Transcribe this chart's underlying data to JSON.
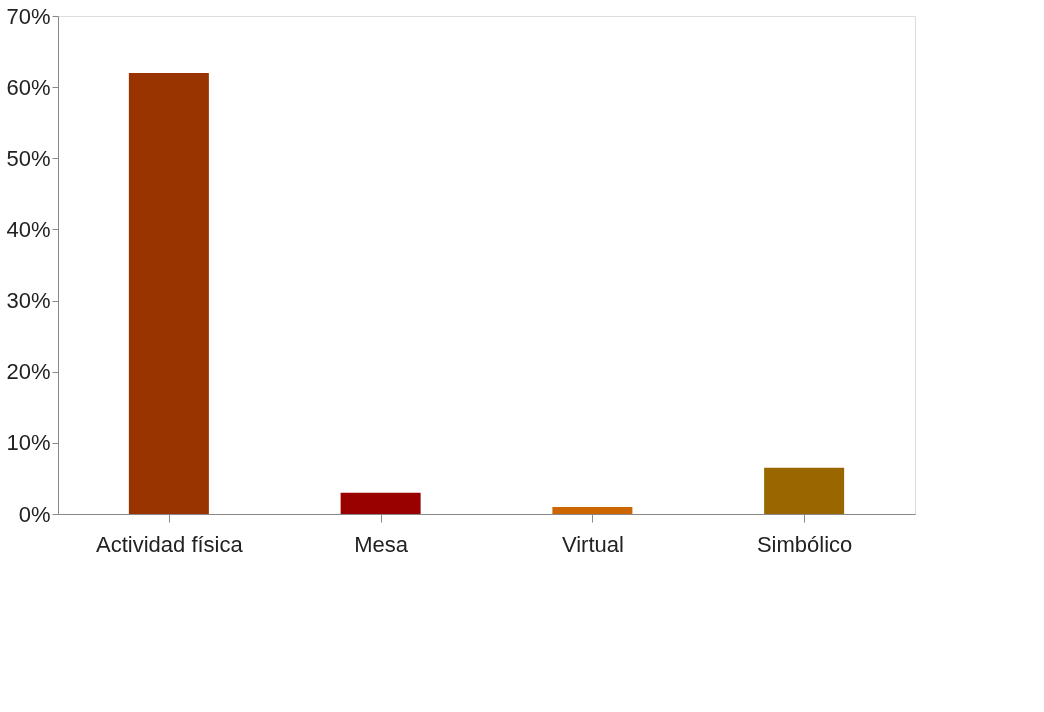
{
  "chart_data": {
    "type": "bar",
    "categories": [
      "Actividad física",
      "Mesa",
      "Virtual",
      "Simbólico"
    ],
    "values": [
      62,
      3,
      1,
      6.5
    ],
    "colors": [
      "#993300",
      "#990000",
      "#cc6600",
      "#996600"
    ],
    "ylim": [
      0,
      70
    ],
    "yticks": [
      {
        "value": 0,
        "label": "0%"
      },
      {
        "value": 10,
        "label": "10%"
      },
      {
        "value": 20,
        "label": "20%"
      },
      {
        "value": 30,
        "label": "30%"
      },
      {
        "value": 40,
        "label": "40%"
      },
      {
        "value": 50,
        "label": "50%"
      },
      {
        "value": 60,
        "label": "60%"
      },
      {
        "value": 70,
        "label": "70%"
      }
    ],
    "grid": false,
    "legend": false
  }
}
